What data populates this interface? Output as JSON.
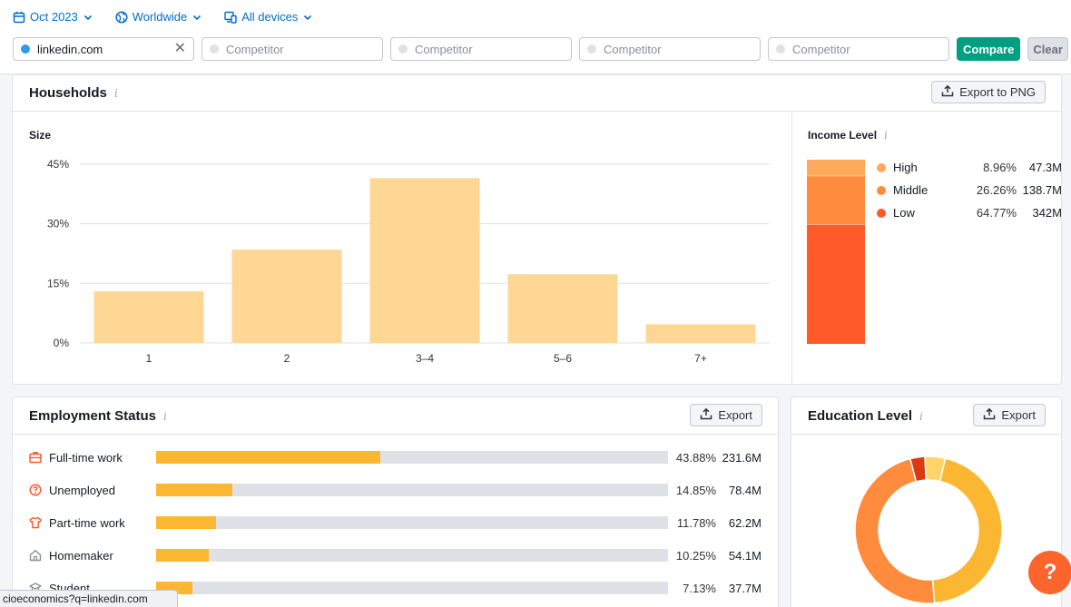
{
  "filters": {
    "date": "Oct 2023",
    "region": "Worldwide",
    "devices": "All devices"
  },
  "inputs": {
    "primary_domain": "linkedin.com",
    "competitor_placeholder": "Competitor",
    "compare_label": "Compare",
    "clear_label": "Clear"
  },
  "colors": {
    "accent_blue": "#006dca",
    "compare_green": "#009f81",
    "primary_dot": "#2b9ded",
    "bar_light": "#ffd795",
    "bar_orange": "#fbb731",
    "income_high": "#ffa95a",
    "income_middle": "#ff8c3c",
    "income_low": "#ff5a28"
  },
  "households": {
    "title": "Households",
    "export_label": "Export to PNG",
    "size_label": "Size",
    "income_label": "Income Level"
  },
  "chart_data": [
    {
      "type": "bar",
      "title": "Size",
      "categories": [
        "1",
        "2",
        "3–4",
        "5–6",
        "7+"
      ],
      "values": [
        13,
        23.5,
        41.5,
        17.3,
        4.7
      ],
      "ylim": [
        0,
        45
      ],
      "yticks": [
        "45%",
        "30%",
        "15%",
        "0%"
      ],
      "ytick_values": [
        45,
        30,
        15,
        0
      ],
      "grid": true
    },
    {
      "type": "bar",
      "title": "Income Level",
      "stacked": true,
      "series": [
        {
          "name": "High",
          "percent": "8.96%",
          "value": 8.96,
          "count": "47.3M",
          "color": "#ffa95a"
        },
        {
          "name": "Middle",
          "percent": "26.26%",
          "value": 26.26,
          "count": "138.7M",
          "color": "#ff8c3c"
        },
        {
          "name": "Low",
          "percent": "64.77%",
          "value": 64.77,
          "count": "342M",
          "color": "#ff5a28"
        }
      ]
    }
  ],
  "employment": {
    "title": "Employment Status",
    "export_label": "Export",
    "rows": [
      {
        "label": "Full-time work",
        "percent": "43.88%",
        "value": 43.88,
        "count": "231.6M",
        "icon": "briefcase-icon"
      },
      {
        "label": "Unemployed",
        "percent": "14.85%",
        "value": 14.85,
        "count": "78.4M",
        "icon": "question-circle-icon"
      },
      {
        "label": "Part-time work",
        "percent": "11.78%",
        "value": 11.78,
        "count": "62.2M",
        "icon": "shirt-icon"
      },
      {
        "label": "Homemaker",
        "percent": "10.25%",
        "value": 10.25,
        "count": "54.1M",
        "icon": "home-icon"
      },
      {
        "label": "Student",
        "percent": "7.13%",
        "value": 7.13,
        "count": "37.7M",
        "icon": "graduation-cap-icon"
      }
    ]
  },
  "education": {
    "title": "Education Level",
    "export_label": "Export",
    "donut_segments": [
      {
        "value": 4.5,
        "color": "#ffd56a"
      },
      {
        "value": 45,
        "color": "#fbb731"
      },
      {
        "value": 47.3,
        "color": "#ff8c3c"
      },
      {
        "value": 3.2,
        "color": "#d83a12"
      }
    ]
  },
  "help_label": "?",
  "status_url": "cioeconomics?q=linkedin.com"
}
